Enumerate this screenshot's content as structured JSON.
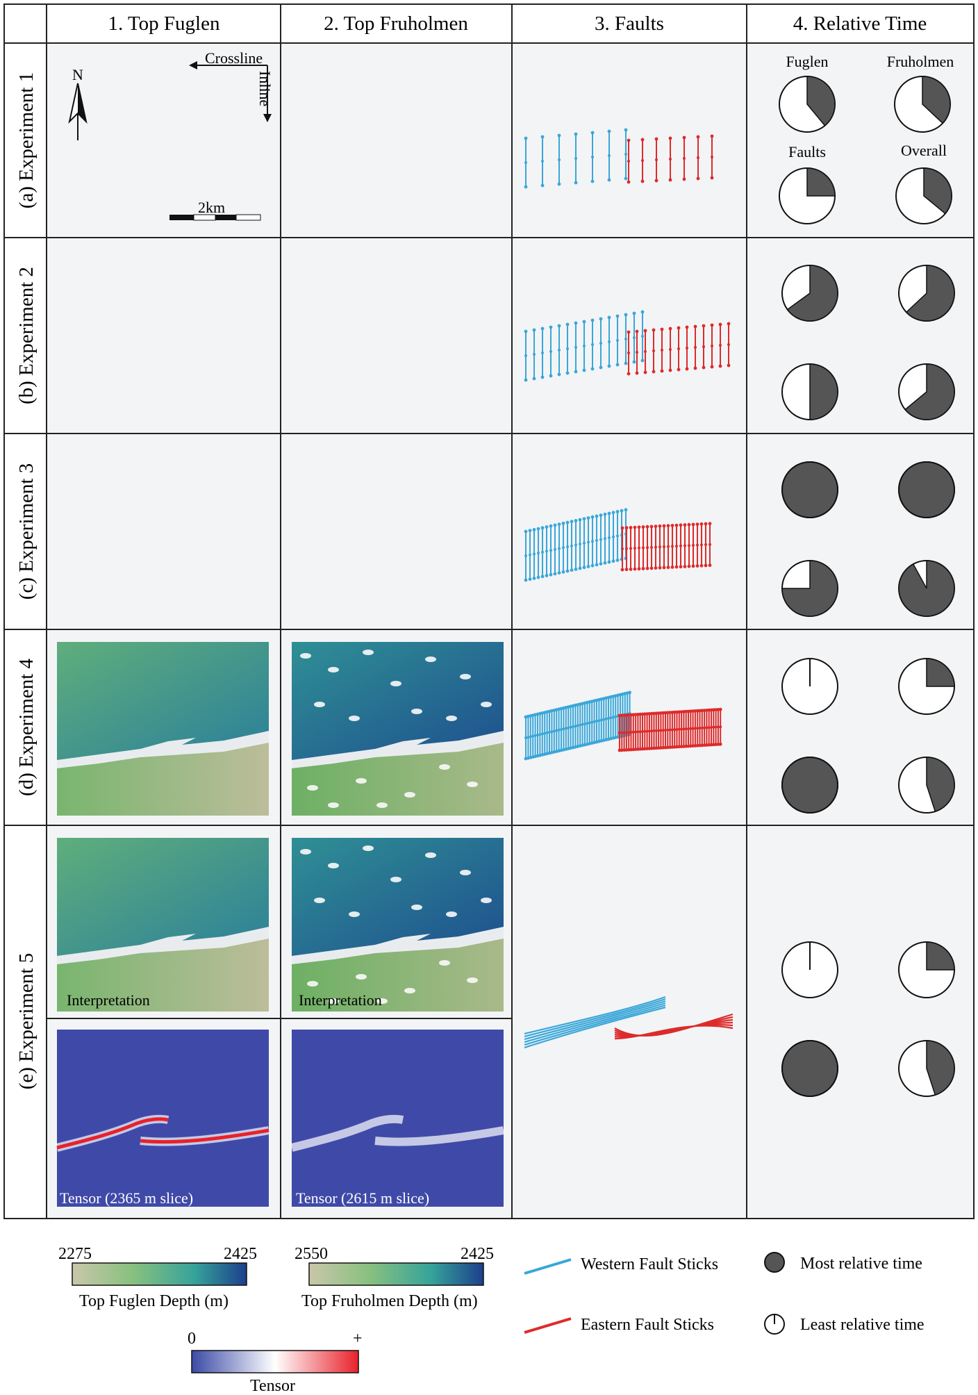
{
  "headers": [
    "1. Top Fuglen",
    "2. Top Fruholmen",
    "3. Faults",
    "4. Relative Time"
  ],
  "rows": [
    {
      "label": "(a) Experiment 1",
      "pies": [
        0.39,
        0.37,
        0.25,
        0.36
      ]
    },
    {
      "label": "(b) Experiment 2",
      "pies": [
        0.65,
        0.63,
        0.5,
        0.64
      ]
    },
    {
      "label": "(c) Experiment 3",
      "pies": [
        1.0,
        1.0,
        0.75,
        0.92
      ]
    },
    {
      "label": "(d) Experiment 4",
      "pies": [
        0.0,
        0.25,
        1.0,
        0.45
      ]
    },
    {
      "label": "(e) Experiment 5",
      "pies": [
        0.0,
        0.25,
        1.0,
        0.45
      ]
    }
  ],
  "pie_labels": [
    "Fuglen",
    "Fruholmen",
    "Faults",
    "Overall"
  ],
  "map_annotations": {
    "north": "N",
    "crossline": "Crossline",
    "inline": "Inline",
    "scale": "2km"
  },
  "panel_labels": {
    "interpretation": "Interpretation",
    "tensor_fuglen": "Tensor (2365 m slice)",
    "tensor_fruholmen": "Tensor (2615 m slice)"
  },
  "legend": {
    "fuglen_min": "2275",
    "fuglen_max": "2425",
    "fuglen_title": "Top Fuglen Depth (m)",
    "fruholmen_min": "2550",
    "fruholmen_max": "2425",
    "fruholmen_title": "Top Fruholmen Depth (m)",
    "tensor_min": "0",
    "tensor_max": "+",
    "tensor_title": "Tensor",
    "western": "Western Fault Sticks",
    "eastern": "Eastern Fault Sticks",
    "most": "Most relative time",
    "least": "Least relative time"
  },
  "colors": {
    "western": "#3aa7d8",
    "eastern": "#dd2b2b",
    "pie_fill": "#555555",
    "panel_bg": "#f3f4f6",
    "tensor_bg": "#3f4aa8"
  }
}
